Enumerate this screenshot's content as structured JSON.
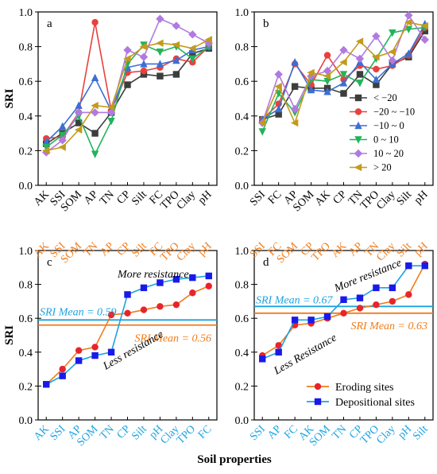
{
  "figure": {
    "x_axis_title": "Soil properties",
    "y_axis_title": "SRI"
  },
  "chart_data": [
    {
      "panel": "a",
      "type": "line",
      "ylabel": "SRI",
      "ylim": [
        0,
        1.0
      ],
      "yticks": [
        "0.0",
        "0.2",
        "0.4",
        "0.6",
        "0.8",
        "1.0"
      ],
      "grid": false,
      "categories": [
        "AK",
        "SSI",
        "SOM",
        "AP",
        "TN",
        "CP",
        "Silt",
        "FC",
        "TPO",
        "Clay",
        "pH"
      ],
      "series": [
        {
          "name": "< −20",
          "color": "#3d3d3d",
          "marker": "square",
          "values": [
            0.24,
            0.3,
            0.36,
            0.3,
            0.42,
            0.58,
            0.64,
            0.63,
            0.64,
            0.76,
            0.79
          ]
        },
        {
          "name": "−20 ~ −10",
          "color": "#e8413d",
          "marker": "circle",
          "values": [
            0.27,
            0.28,
            0.42,
            0.94,
            0.43,
            0.65,
            0.66,
            0.68,
            0.73,
            0.71,
            0.8
          ]
        },
        {
          "name": "−10 ~ 0",
          "color": "#3b6fd4",
          "marker": "triangle-up",
          "values": [
            0.25,
            0.34,
            0.46,
            0.62,
            0.43,
            0.68,
            0.7,
            0.7,
            0.72,
            0.78,
            0.8
          ]
        },
        {
          "name": "0 ~ 10",
          "color": "#22b35c",
          "marker": "triangle-down",
          "values": [
            0.22,
            0.29,
            0.4,
            0.18,
            0.37,
            0.7,
            0.81,
            0.77,
            0.8,
            0.73,
            0.8
          ]
        },
        {
          "name": "10 ~ 20",
          "color": "#b07ae0",
          "marker": "diamond",
          "values": [
            0.19,
            0.26,
            0.42,
            0.42,
            0.42,
            0.78,
            0.74,
            0.96,
            0.92,
            0.87,
            0.82
          ]
        },
        {
          "name": "> 20",
          "color": "#c49a1c",
          "marker": "triangle-left",
          "values": [
            0.2,
            0.22,
            0.32,
            0.46,
            0.45,
            0.73,
            0.8,
            0.82,
            0.81,
            0.79,
            0.84
          ]
        }
      ]
    },
    {
      "panel": "b",
      "type": "line",
      "ylim": [
        0,
        1.0
      ],
      "yticks": [
        "0.0",
        "0.2",
        "0.4",
        "0.6",
        "0.8",
        "1.0"
      ],
      "grid": false,
      "legend_position": "right",
      "categories": [
        "SSI",
        "FC",
        "AP",
        "SOM",
        "AK",
        "CP",
        "TN",
        "TPO",
        "Clay",
        "Silt",
        "pH"
      ],
      "series": [
        {
          "name": "< −20",
          "color": "#3d3d3d",
          "marker": "square",
          "values": [
            0.38,
            0.41,
            0.57,
            0.56,
            0.56,
            0.53,
            0.64,
            0.58,
            0.7,
            0.74,
            0.89
          ]
        },
        {
          "name": "−20 ~ −10",
          "color": "#e8413d",
          "marker": "circle",
          "values": [
            0.38,
            0.47,
            0.7,
            0.58,
            0.75,
            0.61,
            0.69,
            0.67,
            0.69,
            0.75,
            0.91
          ]
        },
        {
          "name": "−10 ~ 0",
          "color": "#3b6fd4",
          "marker": "triangle-up",
          "values": [
            0.38,
            0.44,
            0.71,
            0.55,
            0.54,
            0.59,
            0.71,
            0.61,
            0.7,
            0.76,
            0.93
          ]
        },
        {
          "name": "0 ~ 10",
          "color": "#22b35c",
          "marker": "triangle-down",
          "values": [
            0.31,
            0.53,
            0.42,
            0.61,
            0.6,
            0.64,
            0.59,
            0.73,
            0.88,
            0.9,
            0.91
          ]
        },
        {
          "name": "10 ~ 20",
          "color": "#b07ae0",
          "marker": "diamond",
          "values": [
            0.36,
            0.64,
            0.44,
            0.63,
            0.66,
            0.78,
            0.73,
            0.86,
            0.72,
            0.98,
            0.84
          ]
        },
        {
          "name": "> 20",
          "color": "#c49a1c",
          "marker": "triangle-left",
          "values": [
            0.36,
            0.57,
            0.36,
            0.65,
            0.63,
            0.71,
            0.83,
            0.74,
            0.77,
            0.94,
            0.92
          ]
        }
      ]
    },
    {
      "panel": "c",
      "type": "line",
      "ylabel": "SRI",
      "ylim": [
        0,
        1.0
      ],
      "yticks": [
        "0.0",
        "0.2",
        "0.4",
        "0.6",
        "0.8",
        "1.0"
      ],
      "grid": false,
      "categories_top": [
        "AK",
        "SSI",
        "SOM",
        "TN",
        "AP",
        "CP",
        "Silt",
        "FC",
        "TPO",
        "Clay",
        "pH"
      ],
      "categories_top_color": "#f07c1a",
      "categories_bottom": [
        "AK",
        "SSI",
        "AP",
        "SOM",
        "TN",
        "CP",
        "Silt",
        "pH",
        "Clay",
        "TPO",
        "FC"
      ],
      "categories_bottom_color": "#1ba3e0",
      "series": [
        {
          "name": "Eroding sites",
          "color": "#f07c1a",
          "marker_color": "#e8242b",
          "marker": "circle",
          "values": [
            0.21,
            0.3,
            0.41,
            0.43,
            0.62,
            0.63,
            0.65,
            0.67,
            0.68,
            0.75,
            0.79
          ]
        },
        {
          "name": "Depositional sites",
          "color": "#1ba3e0",
          "marker_color": "#1a1ae8",
          "marker": "square",
          "values": [
            0.21,
            0.26,
            0.35,
            0.38,
            0.4,
            0.74,
            0.78,
            0.81,
            0.83,
            0.84,
            0.85
          ]
        }
      ],
      "hlines": [
        {
          "label": "SRI Mean = 0.59",
          "value": 0.59,
          "color": "#1ba3e0"
        },
        {
          "label": "SRI Mean = 0.56",
          "value": 0.56,
          "color": "#f07c1a"
        }
      ],
      "annotations": [
        "More resistance",
        "Less resistance"
      ]
    },
    {
      "panel": "d",
      "type": "line",
      "ylim": [
        0,
        1.0
      ],
      "yticks": [
        "0.0",
        "0.2",
        "0.4",
        "0.6",
        "0.8",
        "1.0"
      ],
      "grid": false,
      "legend_position": "bottom-right",
      "categories_top": [
        "SSI",
        "FC",
        "SOM",
        "CP",
        "TPO",
        "AK",
        "AP",
        "TN",
        "Clay",
        "Silt",
        "pH"
      ],
      "categories_top_color": "#f07c1a",
      "categories_bottom": [
        "SSI",
        "AP",
        "FC",
        "AK",
        "SOM",
        "TN",
        "CP",
        "TPO",
        "Clay",
        "pH",
        "Silt"
      ],
      "categories_bottom_color": "#1ba3e0",
      "series": [
        {
          "name": "Eroding sites",
          "color": "#f07c1a",
          "marker_color": "#e8242b",
          "marker": "circle",
          "values": [
            0.38,
            0.44,
            0.56,
            0.57,
            0.6,
            0.63,
            0.66,
            0.68,
            0.7,
            0.74,
            0.92
          ]
        },
        {
          "name": "Depositional sites",
          "color": "#1ba3e0",
          "marker_color": "#1a1ae8",
          "marker": "square",
          "values": [
            0.36,
            0.4,
            0.59,
            0.59,
            0.61,
            0.71,
            0.72,
            0.78,
            0.78,
            0.91,
            0.91
          ]
        }
      ],
      "hlines": [
        {
          "label": "SRI Mean = 0.67",
          "value": 0.67,
          "color": "#1ba3e0"
        },
        {
          "label": "SRI Mean = 0.63",
          "value": 0.63,
          "color": "#f07c1a"
        }
      ],
      "annotations": [
        "More resistance",
        "Less Resistance"
      ]
    }
  ]
}
